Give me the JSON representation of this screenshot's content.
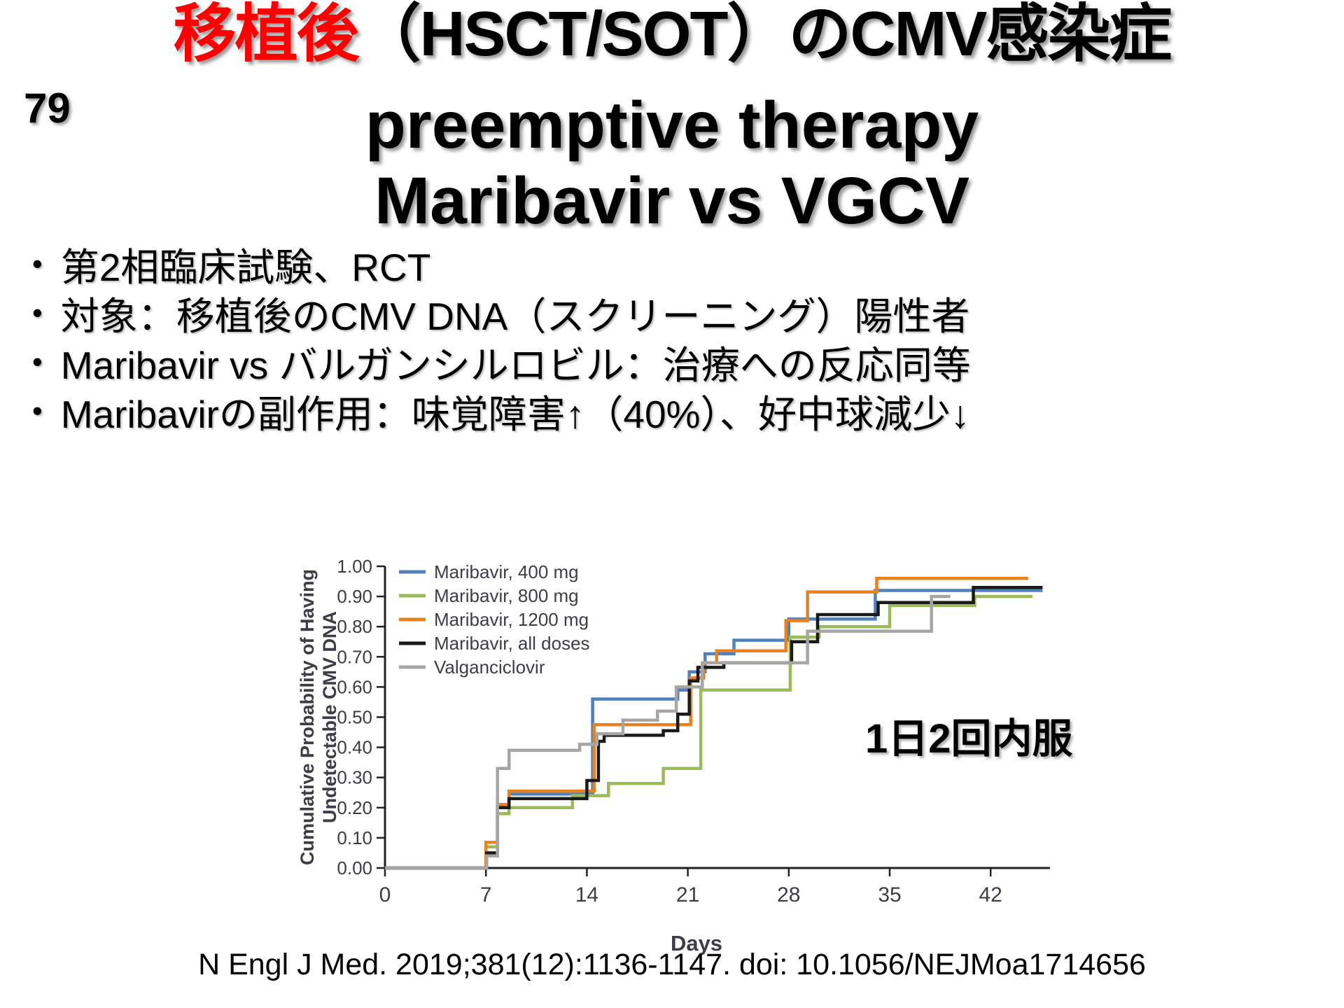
{
  "slide": {
    "number": "79",
    "title": {
      "highlight": "移植後",
      "highlight_color": "#ff0000",
      "line1_rest": "（HSCT/SOT）のCMV感染症",
      "line2": "preemptive therapy",
      "line3": "Maribavir vs VGCV"
    },
    "bullets": [
      "第2相臨床試験、RCT",
      "対象：移植後のCMV DNA（スクリーニング）陽性者",
      "Maribavir vs バルガンシルロビル：治療への反応同等",
      "Maribavirの副作用：味覚障害↑（40%）、好中球減少↓"
    ],
    "annotation": "1日2回内服",
    "citation": "N Engl J Med. 2019;381(12):1136-1147. doi: 10.1056/NEJMoa1714656"
  },
  "chart_data": {
    "type": "line",
    "subtype": "kaplan-meier-steps",
    "xlabel": "Days",
    "ylabel_line1": "Cumulative Probability of Having",
    "ylabel_line2": "Undetectable CMV DNA",
    "xlim": [
      0,
      46
    ],
    "ylim": [
      0,
      1
    ],
    "xticks": [
      0,
      7,
      14,
      21,
      28,
      35,
      42
    ],
    "yticks": [
      "0.00",
      "0.10",
      "0.20",
      "0.30",
      "0.40",
      "0.50",
      "0.60",
      "0.70",
      "0.80",
      "0.90",
      "1.00"
    ],
    "grid": false,
    "legend_position": "inside-top-left",
    "axis_color": "#222222",
    "text_color": "#3d3d47",
    "series": [
      {
        "name": "Maribavir, 400 mg",
        "color": "#4f81bd",
        "end_day": 45.6,
        "steps": [
          [
            7.05,
            0.05
          ],
          [
            7.8,
            0.21
          ],
          [
            8.6,
            0.245
          ],
          [
            14.4,
            0.56
          ],
          [
            20.3,
            0.59
          ],
          [
            21.1,
            0.65
          ],
          [
            22.2,
            0.71
          ],
          [
            24.2,
            0.755
          ],
          [
            28.0,
            0.825
          ],
          [
            34.0,
            0.92
          ]
        ]
      },
      {
        "name": "Maribavir, 800 mg",
        "color": "#9bbb59",
        "end_day": 44.9,
        "steps": [
          [
            7.0,
            0.07
          ],
          [
            7.8,
            0.18
          ],
          [
            8.6,
            0.2
          ],
          [
            13.0,
            0.24
          ],
          [
            15.5,
            0.28
          ],
          [
            19.3,
            0.33
          ],
          [
            21.9,
            0.59
          ],
          [
            28.1,
            0.765
          ],
          [
            30.1,
            0.8
          ],
          [
            35.0,
            0.87
          ],
          [
            40.9,
            0.9
          ]
        ]
      },
      {
        "name": "Maribavir, 1200 mg",
        "color": "#e8821e",
        "end_day": 44.6,
        "steps": [
          [
            7.0,
            0.085
          ],
          [
            7.8,
            0.21
          ],
          [
            8.6,
            0.255
          ],
          [
            14.5,
            0.475
          ],
          [
            21.2,
            0.63
          ],
          [
            22.1,
            0.68
          ],
          [
            23.0,
            0.72
          ],
          [
            27.8,
            0.82
          ],
          [
            29.3,
            0.915
          ],
          [
            34.1,
            0.96
          ]
        ]
      },
      {
        "name": "Maribavir, all doses",
        "color": "#1a1a1a",
        "end_day": 45.6,
        "steps": [
          [
            7.05,
            0.05
          ],
          [
            7.8,
            0.2
          ],
          [
            8.6,
            0.23
          ],
          [
            14.0,
            0.29
          ],
          [
            14.8,
            0.42
          ],
          [
            15.2,
            0.44
          ],
          [
            19.3,
            0.455
          ],
          [
            20.3,
            0.51
          ],
          [
            21.1,
            0.62
          ],
          [
            21.7,
            0.665
          ],
          [
            23.5,
            0.68
          ],
          [
            28.2,
            0.75
          ],
          [
            30.0,
            0.84
          ],
          [
            34.2,
            0.88
          ],
          [
            40.8,
            0.93
          ]
        ]
      },
      {
        "name": "Valganciclovir",
        "color": "#a6a6a6",
        "end_day": 39.2,
        "steps": [
          [
            7.05,
            0.04
          ],
          [
            7.8,
            0.33
          ],
          [
            8.6,
            0.39
          ],
          [
            13.5,
            0.41
          ],
          [
            14.7,
            0.445
          ],
          [
            16.5,
            0.49
          ],
          [
            18.9,
            0.52
          ],
          [
            20.2,
            0.6
          ],
          [
            22.0,
            0.68
          ],
          [
            29.3,
            0.785
          ],
          [
            37.9,
            0.9
          ]
        ]
      }
    ]
  }
}
